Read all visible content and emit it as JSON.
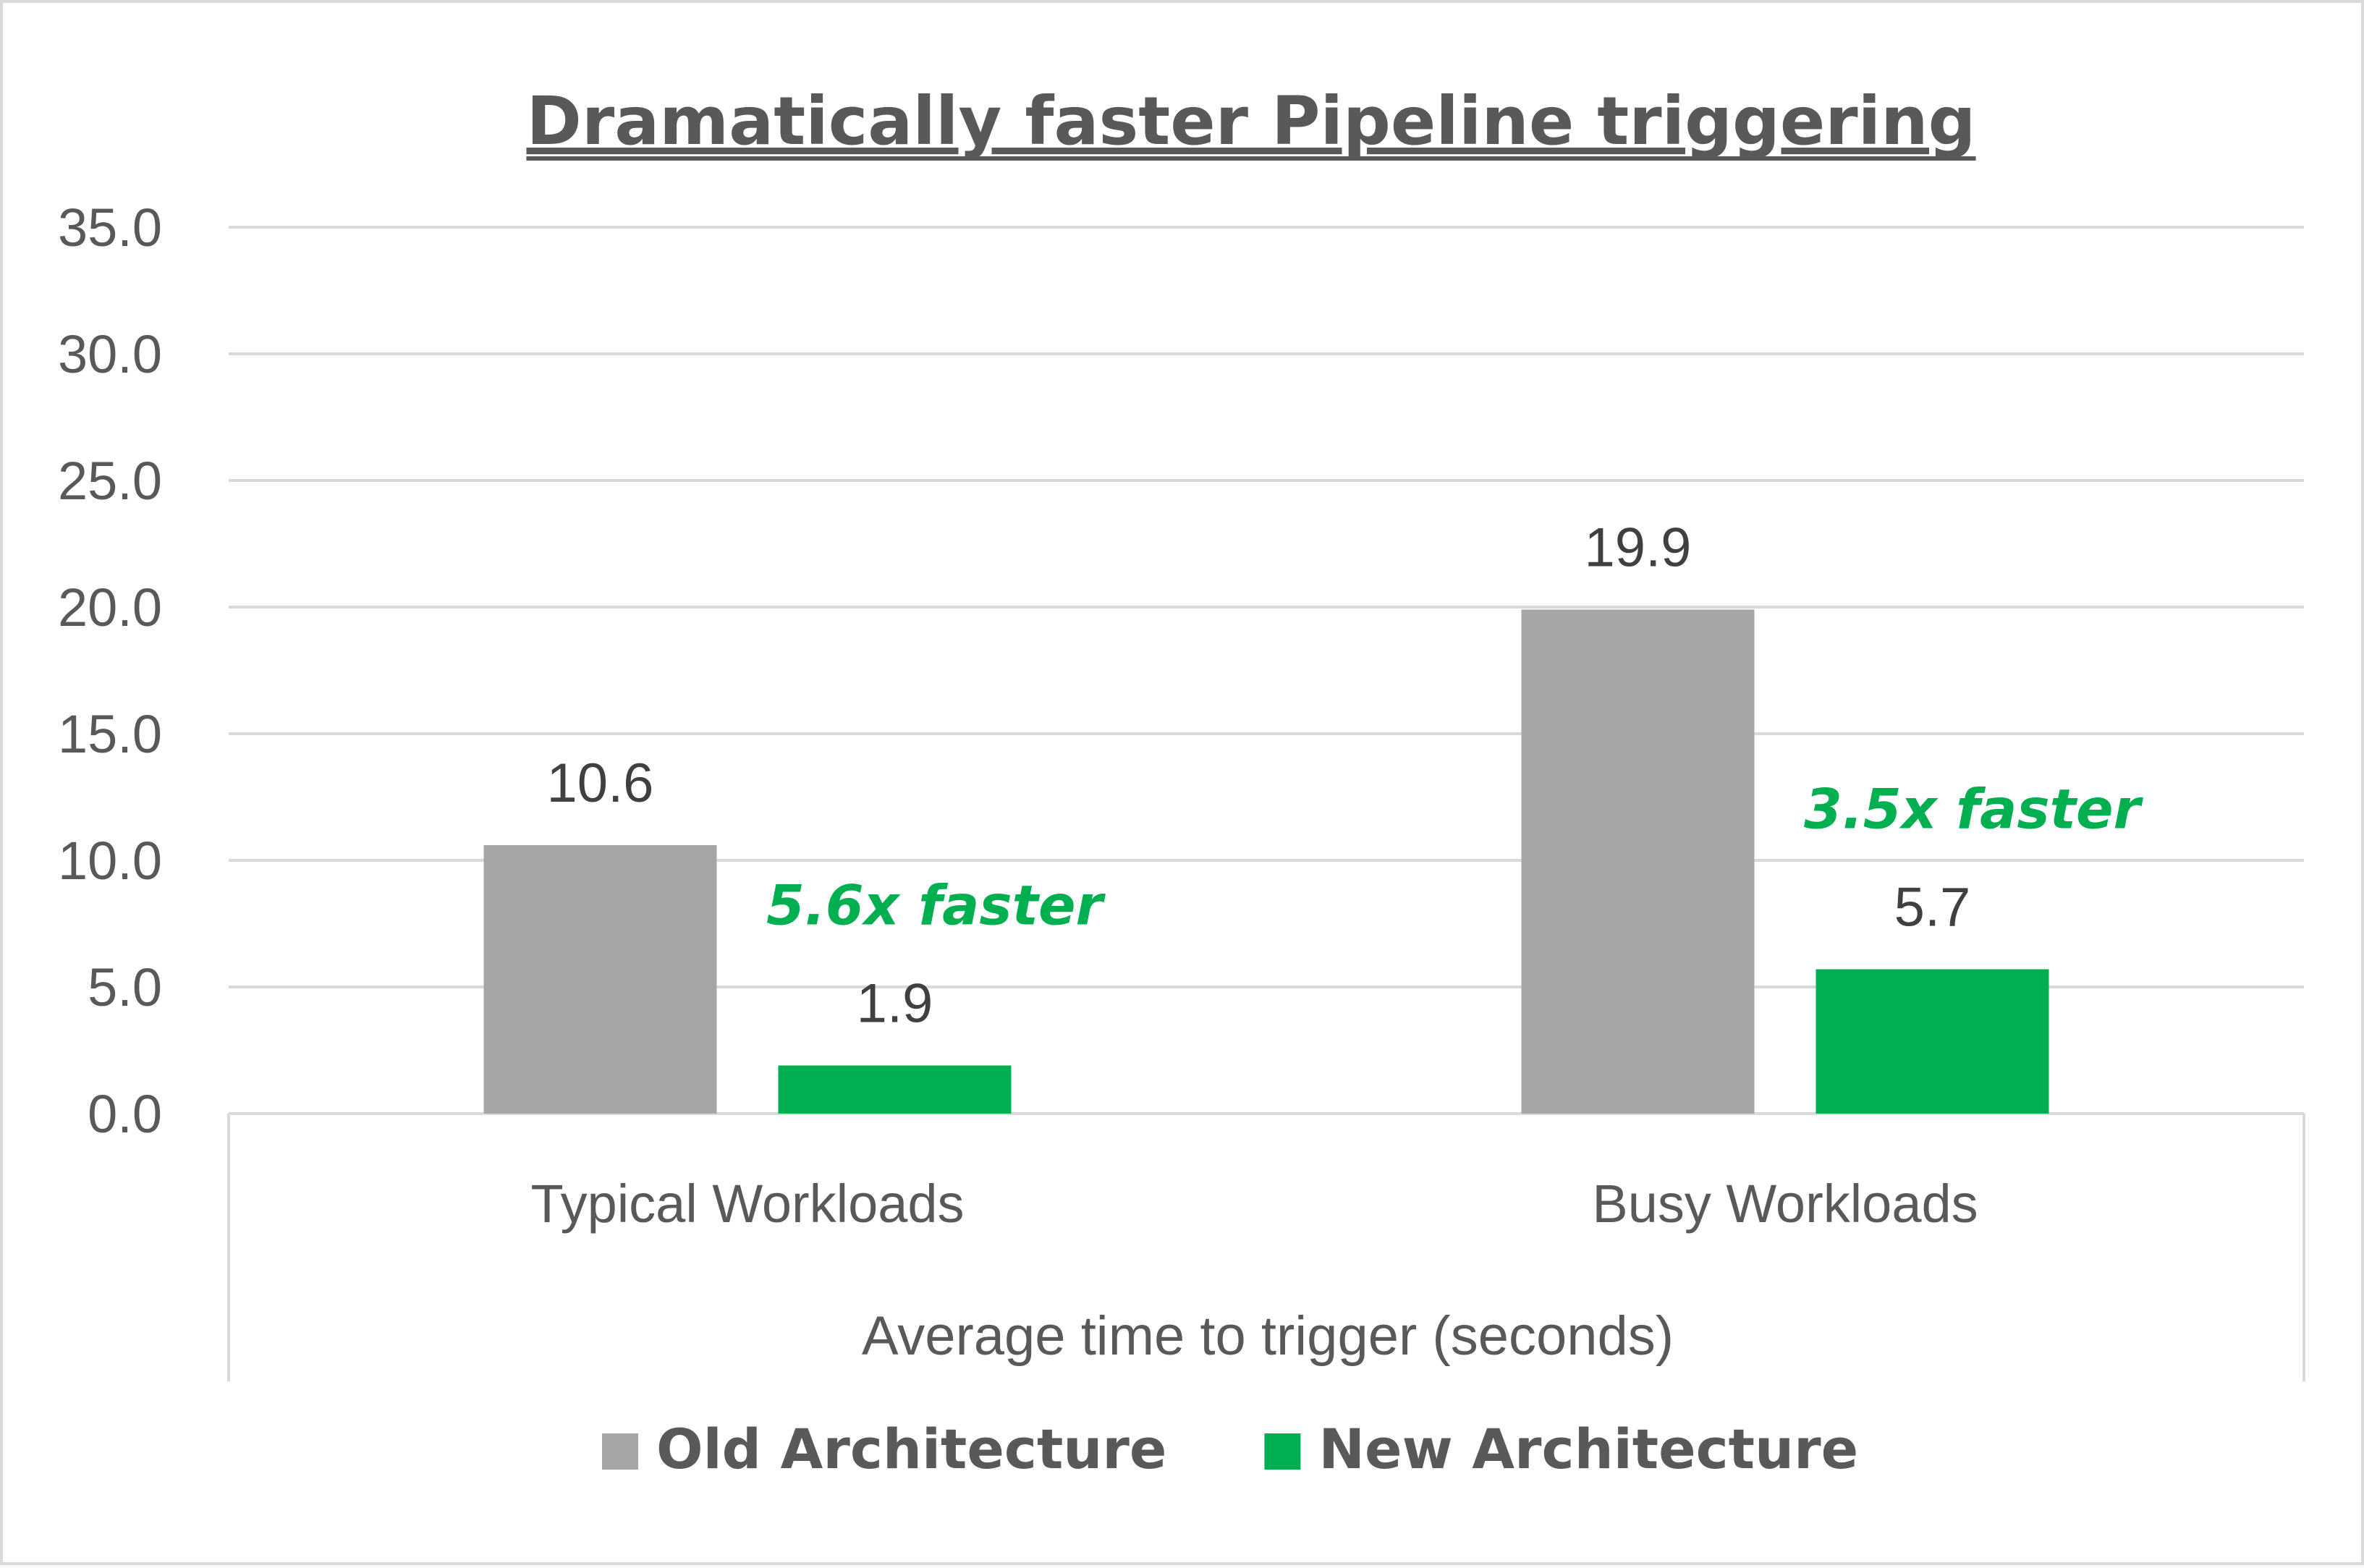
{
  "chart_data": {
    "type": "bar",
    "title": "Dramatically faster Pipeline triggering",
    "xlabel": "Average time to trigger (seconds)",
    "ylabel": "",
    "categories": [
      "Typical Workloads",
      "Busy Workloads"
    ],
    "series": [
      {
        "name": "Old Architecture",
        "values": [
          10.6,
          19.9
        ],
        "color": "#a6a6a6",
        "labels": [
          "10.6",
          "19.9"
        ]
      },
      {
        "name": "New Architecture",
        "values": [
          1.9,
          5.7
        ],
        "color": "#00b050",
        "labels": [
          "1.9",
          "5.7"
        ]
      }
    ],
    "ylim": [
      0,
      35
    ],
    "yticks": [
      "0.0",
      "5.0",
      "10.0",
      "15.0",
      "20.0",
      "25.0",
      "30.0",
      "35.0"
    ],
    "grid": true,
    "legend": "bottom",
    "annotations": [
      {
        "text": "5.6x faster",
        "category": "Typical Workloads",
        "color": "#00b050"
      },
      {
        "text": "3.5x faster",
        "category": "Busy Workloads",
        "color": "#00b050"
      }
    ]
  }
}
